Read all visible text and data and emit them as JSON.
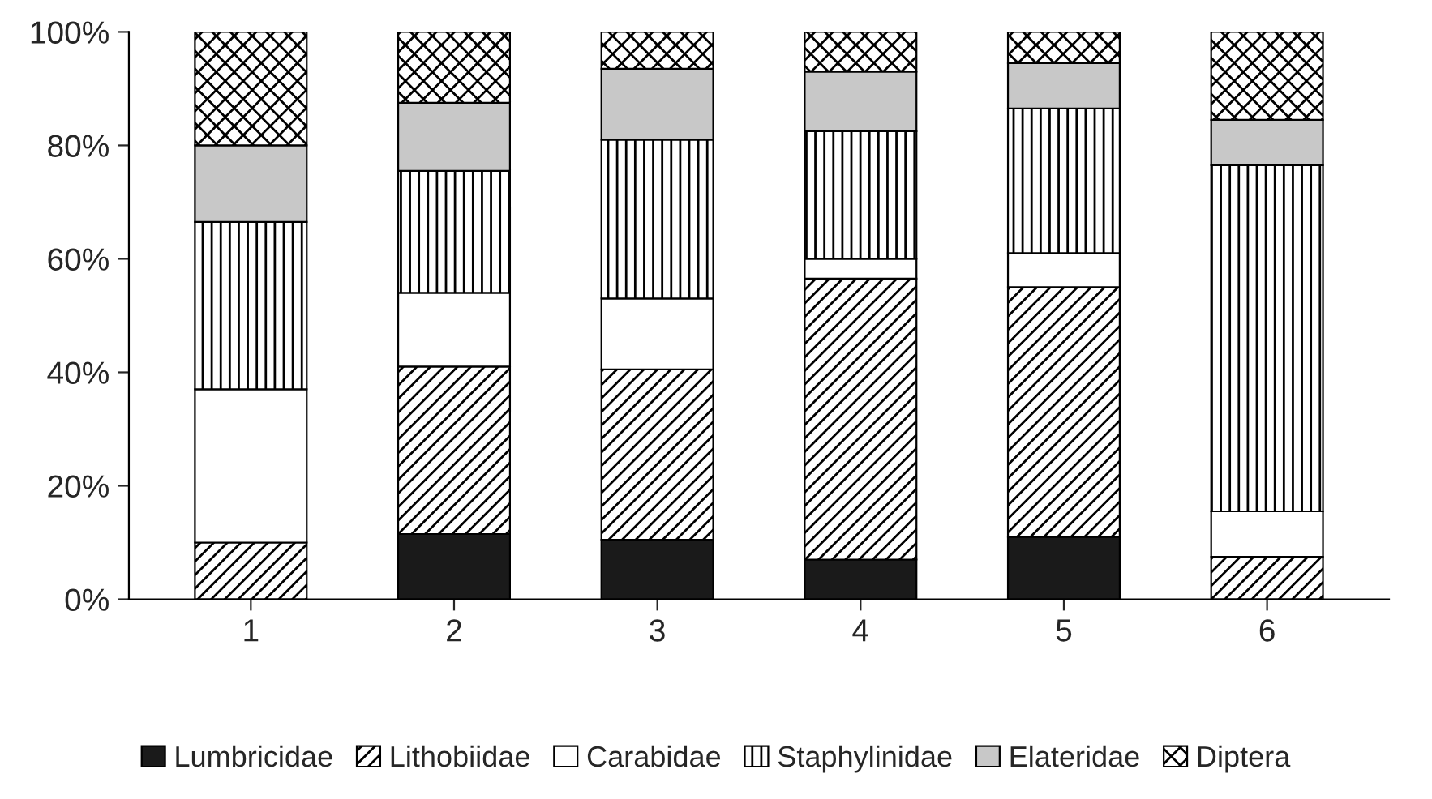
{
  "chart_data": {
    "type": "bar",
    "stacked": true,
    "categories": [
      "1",
      "2",
      "3",
      "4",
      "5",
      "6"
    ],
    "series": [
      {
        "name": "Lumbricidae",
        "color": "#1a1a1a",
        "values": [
          0,
          11.5,
          10.5,
          7,
          11,
          0
        ]
      },
      {
        "name": "Lithobiidae",
        "color": "#000000",
        "values": [
          10,
          29.5,
          30,
          49.5,
          44,
          7.5
        ]
      },
      {
        "name": "Carabidae",
        "color": "#ffffff",
        "values": [
          27,
          13,
          12.5,
          3.5,
          6,
          8
        ]
      },
      {
        "name": "Staphylinidae",
        "color": "#000000",
        "values": [
          29.5,
          21.5,
          28,
          22.5,
          25.5,
          61
        ]
      },
      {
        "name": "Elateridae",
        "color": "#c8c8c8",
        "values": [
          13.5,
          12,
          12.5,
          10.5,
          8,
          8
        ]
      },
      {
        "name": "Diptera",
        "color": "#000000",
        "values": [
          20,
          12.5,
          6.5,
          7,
          5.5,
          15.5
        ]
      }
    ],
    "ylim": [
      0,
      100
    ],
    "yticks": [
      {
        "value": 0,
        "label": "0%"
      },
      {
        "value": 20,
        "label": "20%"
      },
      {
        "value": 40,
        "label": "40%"
      },
      {
        "value": 60,
        "label": "60%"
      },
      {
        "value": 80,
        "label": "80%"
      },
      {
        "value": 100,
        "label": "100%"
      }
    ],
    "grid": false,
    "legend": "bottom"
  }
}
